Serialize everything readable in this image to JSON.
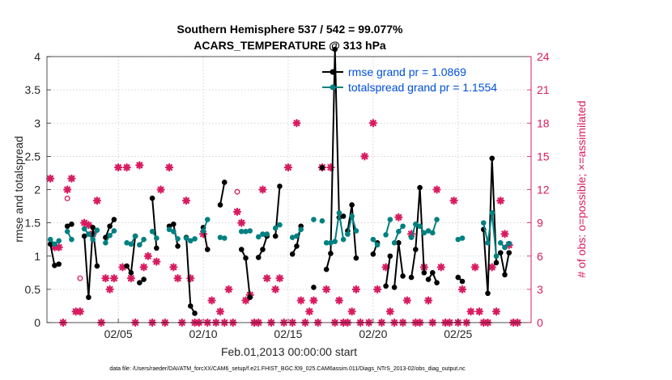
{
  "chart_data": {
    "type": "line",
    "title": "Southern Hemisphere 537 / 542 = 99.077%",
    "subtitle": "ACARS_TEMPERATURE @ 313 hPa",
    "xlabel": "Feb.01,2013 00:00:00 start",
    "ylabel": "rmse and totalspread",
    "y2label": "# of obs: o=possible; ×=assimilated",
    "footer": "data file: /Users/raeder/DAI/ATM_forcXX/CAM6_setup/f.e21.FHIST_BGC.f09_025.CAM6assim.011/Diags_NTrS_2013-02/obs_diag_output.nc",
    "xlim": [
      0.8,
      29.3
    ],
    "ylim": [
      0,
      4
    ],
    "y2lim": [
      0,
      24
    ],
    "xticks": [
      {
        "x": 5,
        "label": "02/05"
      },
      {
        "x": 10,
        "label": "02/10"
      },
      {
        "x": 15,
        "label": "02/15"
      },
      {
        "x": 20,
        "label": "02/20"
      },
      {
        "x": 25,
        "label": "02/25"
      }
    ],
    "yticks": [
      "0",
      "0.5",
      "1",
      "1.5",
      "2",
      "2.5",
      "3",
      "3.5",
      "4"
    ],
    "y2ticks": [
      "0",
      "3",
      "6",
      "9",
      "12",
      "15",
      "18",
      "21",
      "24"
    ],
    "colors": {
      "rmse": "#000000",
      "spread": "#008080",
      "obs": "#d81b60",
      "axis2": "#d81b60",
      "legend_text": "#0050d8"
    },
    "series": [
      {
        "name": "rmse grand pr = 1.0869",
        "key": "rmse",
        "segments": [
          [
            [
              1.0,
              1.18
            ],
            [
              1.25,
              0.86
            ],
            [
              1.5,
              0.88
            ]
          ],
          [
            [
              2.0,
              1.45
            ],
            [
              2.25,
              1.48
            ]
          ],
          [
            [
              3.0,
              1.3
            ],
            [
              3.25,
              0.38
            ],
            [
              3.5,
              1.43
            ],
            [
              3.75,
              0.85
            ]
          ],
          [
            [
              4.25,
              1.28
            ],
            [
              4.5,
              1.45
            ],
            [
              4.75,
              1.55
            ]
          ],
          [
            [
              5.5,
              0.85
            ],
            [
              5.75,
              0.75
            ],
            [
              6.0,
              1.3
            ]
          ],
          [
            [
              6.25,
              0.6
            ],
            [
              6.5,
              0.65
            ]
          ],
          [
            [
              7.0,
              1.87
            ],
            [
              7.25,
              1.12
            ]
          ],
          [
            [
              8.0,
              1.45
            ],
            [
              8.25,
              1.48
            ],
            [
              8.5,
              1.15
            ]
          ],
          [
            [
              9.0,
              1.28
            ],
            [
              9.25,
              0.25
            ],
            [
              9.5,
              0.14
            ]
          ],
          [
            [
              10.0,
              1.43
            ],
            [
              10.25,
              1.1
            ]
          ],
          [
            [
              11.0,
              1.77
            ],
            [
              11.25,
              2.11
            ]
          ],
          [
            [
              12.25,
              1.1
            ],
            [
              12.5,
              0.97
            ],
            [
              12.75,
              0.38
            ]
          ],
          [
            [
              13.25,
              0.98
            ],
            [
              13.5,
              1.1
            ],
            [
              13.75,
              1.3
            ]
          ],
          [
            [
              14.25,
              1.3
            ],
            [
              14.5,
              2.05
            ]
          ],
          [
            [
              15.25,
              1.03
            ],
            [
              15.5,
              1.15
            ],
            [
              15.75,
              1.45
            ]
          ],
          [
            [
              16.5,
              0.53
            ]
          ],
          [
            [
              17.0,
              2.33
            ]
          ],
          [
            [
              17.25,
              0.8
            ],
            [
              17.5,
              1.04
            ],
            [
              17.75,
              4.11
            ],
            [
              18.0,
              1.58
            ],
            [
              18.25,
              1.6
            ]
          ],
          [
            [
              18.5,
              1.38
            ],
            [
              18.75,
              1.77
            ],
            [
              19.0,
              0.97
            ]
          ],
          [
            [
              20.0,
              1.03
            ],
            [
              20.25,
              1.2
            ]
          ],
          [
            [
              20.75,
              0.55
            ],
            [
              21.0,
              1.0
            ]
          ],
          [
            [
              21.25,
              0.53
            ],
            [
              21.5,
              1.2
            ],
            [
              21.75,
              0.7
            ]
          ],
          [
            [
              22.25,
              0.68
            ],
            [
              22.5,
              1.1
            ],
            [
              22.75,
              2.03
            ],
            [
              23.0,
              0.75
            ]
          ],
          [
            [
              23.25,
              0.65
            ],
            [
              23.5,
              0.75
            ],
            [
              23.75,
              0.6
            ]
          ],
          [
            [
              25.0,
              0.68
            ],
            [
              25.25,
              0.62
            ]
          ],
          [
            [
              26.5,
              1.4
            ],
            [
              26.75,
              0.44
            ],
            [
              27.0,
              2.47
            ],
            [
              27.25,
              0.9
            ]
          ],
          [
            [
              27.5,
              1.05
            ],
            [
              27.75,
              0.72
            ],
            [
              28.0,
              1.05
            ]
          ]
        ]
      },
      {
        "name": "totalspread grand pr = 1.1554",
        "key": "spread",
        "segments": [
          [
            [
              1.0,
              1.25
            ],
            [
              1.25,
              1.18
            ],
            [
              1.5,
              1.23
            ]
          ],
          [
            [
              2.0,
              1.37
            ],
            [
              2.25,
              1.25
            ]
          ],
          [
            [
              3.0,
              1.41
            ],
            [
              3.25,
              1.33
            ],
            [
              3.5,
              1.25
            ],
            [
              3.75,
              1.39
            ]
          ],
          [
            [
              4.25,
              1.2
            ],
            [
              4.5,
              1.31
            ],
            [
              4.75,
              1.38
            ]
          ],
          [
            [
              5.5,
              1.2
            ],
            [
              5.75,
              1.18
            ],
            [
              6.0,
              1.3
            ]
          ],
          [
            [
              6.25,
              1.17
            ],
            [
              6.5,
              1.25
            ]
          ],
          [
            [
              7.0,
              1.37
            ],
            [
              7.25,
              1.27
            ]
          ],
          [
            [
              8.0,
              1.4
            ],
            [
              8.25,
              1.37
            ],
            [
              8.5,
              1.26
            ]
          ],
          [
            [
              9.0,
              1.27
            ],
            [
              9.25,
              1.23
            ],
            [
              9.5,
              1.26
            ]
          ],
          [
            [
              10.0,
              1.38
            ],
            [
              10.25,
              1.55
            ]
          ],
          [
            [
              11.0,
              1.28
            ],
            [
              11.25,
              1.27
            ]
          ],
          [
            [
              12.25,
              1.37
            ],
            [
              12.5,
              1.37
            ],
            [
              12.75,
              1.38
            ]
          ],
          [
            [
              13.25,
              1.29
            ],
            [
              13.5,
              1.33
            ],
            [
              13.75,
              1.33
            ]
          ],
          [
            [
              14.25,
              1.42
            ],
            [
              14.5,
              1.47
            ]
          ],
          [
            [
              15.25,
              1.28
            ],
            [
              15.5,
              1.3
            ],
            [
              15.75,
              1.4
            ]
          ],
          [
            [
              16.5,
              1.55
            ]
          ],
          [
            [
              17.0,
              1.53
            ]
          ],
          [
            [
              17.25,
              1.2
            ],
            [
              17.5,
              1.2
            ],
            [
              17.75,
              1.22
            ],
            [
              18.0,
              1.65
            ],
            [
              18.25,
              1.25
            ]
          ],
          [
            [
              18.5,
              1.33
            ],
            [
              18.75,
              1.6
            ],
            [
              19.0,
              1.38
            ]
          ],
          [
            [
              20.0,
              1.25
            ],
            [
              20.25,
              1.17
            ]
          ],
          [
            [
              20.75,
              1.32
            ],
            [
              21.0,
              1.55
            ]
          ],
          [
            [
              21.25,
              1.2
            ],
            [
              21.5,
              1.37
            ],
            [
              21.75,
              1.45
            ]
          ],
          [
            [
              22.25,
              1.28
            ],
            [
              22.5,
              1.48
            ],
            [
              22.75,
              1.45
            ],
            [
              23.0,
              1.35
            ]
          ],
          [
            [
              23.25,
              1.38
            ],
            [
              23.5,
              1.35
            ],
            [
              23.75,
              1.55
            ]
          ],
          [
            [
              25.0,
              1.25
            ],
            [
              25.25,
              1.27
            ]
          ],
          [
            [
              26.5,
              1.5
            ],
            [
              26.75,
              1.2
            ],
            [
              27.0,
              1.65
            ],
            [
              27.25,
              1.0
            ]
          ],
          [
            [
              27.5,
              1.2
            ],
            [
              27.75,
              1.13
            ],
            [
              28.0,
              1.19
            ]
          ]
        ]
      }
    ],
    "obs_assimilated": [
      [
        1,
        13
      ],
      [
        1.25,
        6.8
      ],
      [
        1.5,
        6.8
      ],
      [
        1.75,
        0
      ],
      [
        2,
        12
      ],
      [
        2.25,
        13
      ],
      [
        2.5,
        1
      ],
      [
        2.75,
        1
      ],
      [
        3,
        9
      ],
      [
        3.25,
        8.8
      ],
      [
        3.5,
        8
      ],
      [
        3.75,
        11
      ],
      [
        4,
        0
      ],
      [
        4.25,
        4
      ],
      [
        4.5,
        3
      ],
      [
        4.75,
        4
      ],
      [
        5,
        14
      ],
      [
        5.25,
        5
      ],
      [
        5.5,
        14
      ],
      [
        5.75,
        4
      ],
      [
        6,
        0
      ],
      [
        6.25,
        14.2
      ],
      [
        6.5,
        5
      ],
      [
        6.75,
        6
      ],
      [
        7,
        0
      ],
      [
        7.25,
        5.5
      ],
      [
        7.5,
        12
      ],
      [
        7.75,
        0
      ],
      [
        8,
        14
      ],
      [
        8.25,
        5
      ],
      [
        8.5,
        4
      ],
      [
        8.75,
        0
      ],
      [
        9,
        11
      ],
      [
        9.25,
        4
      ],
      [
        9.5,
        0
      ],
      [
        9.75,
        0
      ],
      [
        10,
        8
      ],
      [
        10.25,
        0
      ],
      [
        10.5,
        2
      ],
      [
        10.75,
        0
      ],
      [
        11,
        1
      ],
      [
        11.25,
        0
      ],
      [
        11.5,
        3
      ],
      [
        11.75,
        0
      ],
      [
        12,
        10
      ],
      [
        12.25,
        9
      ],
      [
        12.5,
        2
      ],
      [
        12.75,
        2.5
      ],
      [
        13,
        0
      ],
      [
        13.25,
        0
      ],
      [
        13.5,
        12
      ],
      [
        13.75,
        4
      ],
      [
        14,
        0
      ],
      [
        14.25,
        3
      ],
      [
        14.5,
        4
      ],
      [
        14.75,
        0
      ],
      [
        15,
        14
      ],
      [
        15.25,
        0
      ],
      [
        15.5,
        18
      ],
      [
        15.75,
        2
      ],
      [
        16,
        0
      ],
      [
        16.25,
        1
      ],
      [
        16.5,
        2
      ],
      [
        16.75,
        0
      ],
      [
        17,
        14
      ],
      [
        17.25,
        3
      ],
      [
        17.5,
        14
      ],
      [
        17.75,
        0
      ],
      [
        18,
        2
      ],
      [
        18.25,
        0
      ],
      [
        18.5,
        0
      ],
      [
        18.75,
        1
      ],
      [
        19,
        3
      ],
      [
        19.25,
        0
      ],
      [
        19.5,
        15
      ],
      [
        19.75,
        0
      ],
      [
        20,
        18
      ],
      [
        20.25,
        3
      ],
      [
        20.5,
        0
      ],
      [
        20.75,
        5
      ],
      [
        21,
        1
      ],
      [
        21.25,
        0
      ],
      [
        21.5,
        9.5
      ],
      [
        21.75,
        0
      ],
      [
        22,
        2
      ],
      [
        22.25,
        8
      ],
      [
        22.5,
        0
      ],
      [
        22.75,
        0
      ],
      [
        23,
        5
      ],
      [
        23.25,
        2
      ],
      [
        23.5,
        0
      ],
      [
        23.75,
        12
      ],
      [
        24,
        5
      ],
      [
        24.25,
        0
      ],
      [
        24.5,
        0
      ],
      [
        24.75,
        11
      ],
      [
        25,
        0
      ],
      [
        25.25,
        3
      ],
      [
        25.5,
        0
      ],
      [
        25.75,
        1
      ],
      [
        26,
        5
      ],
      [
        26.25,
        1
      ],
      [
        26.5,
        0
      ],
      [
        26.75,
        0
      ],
      [
        27,
        5
      ],
      [
        27.25,
        1
      ],
      [
        27.5,
        11
      ],
      [
        27.75,
        8
      ],
      [
        28,
        7
      ],
      [
        28.25,
        0
      ],
      [
        28.5,
        0
      ]
    ],
    "obs_possible": [
      [
        2,
        11.2
      ],
      [
        2.75,
        4
      ],
      [
        12,
        11.8
      ]
    ]
  }
}
